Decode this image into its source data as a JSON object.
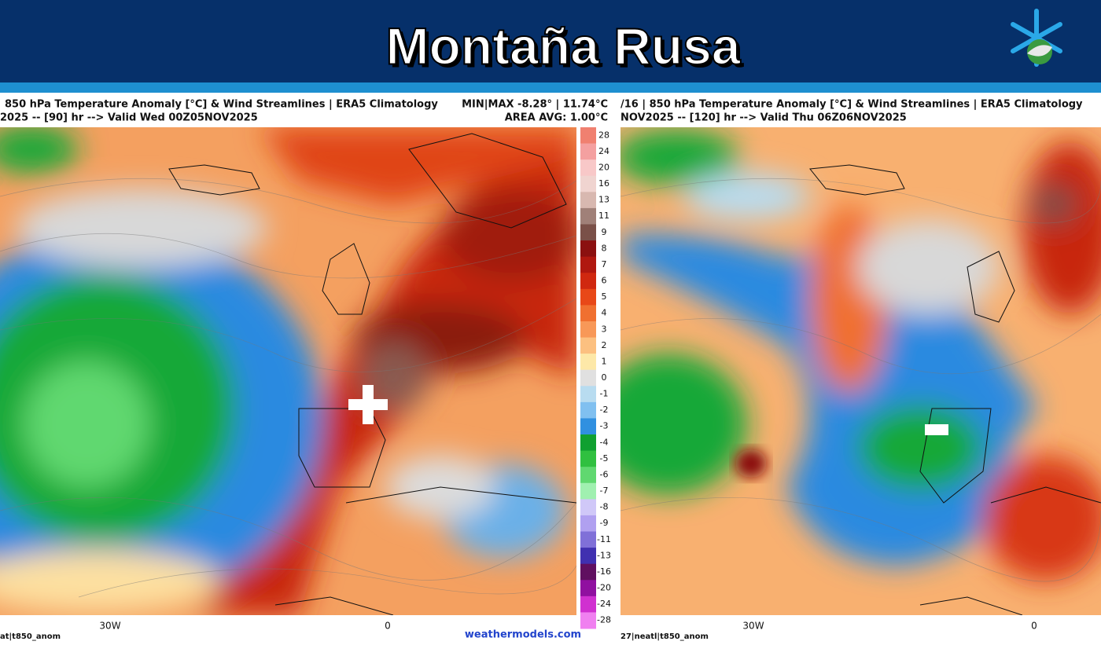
{
  "header": {
    "title": "Montaña Rusa"
  },
  "panels": [
    {
      "title": "850 hPa Temperature Anomaly [°C] & Wind Streamlines | ERA5 Climatology",
      "subtitle": "2025 -- [90] hr --> Valid Wed 00Z05NOV2025",
      "stats_minmax": "MIN|MAX -8.28° | 11.74°C",
      "stats_avg": "AREA AVG: 1.00°C",
      "axis_labels": [
        "30W",
        "0"
      ],
      "footer": "at|t850_anom"
    },
    {
      "title": "/16 | 850 hPa Temperature Anomaly [°C] & Wind Streamlines | ERA5 Climatology",
      "subtitle": "NOV2025 -- [120] hr --> Valid Thu 06Z06NOV2025",
      "axis_labels": [
        "30W",
        "0"
      ],
      "footer": "27|neatl|t850_anom"
    }
  ],
  "colorbar": [
    {
      "value": 28,
      "color": "#f08070"
    },
    {
      "value": 24,
      "color": "#f4a0a0"
    },
    {
      "value": 20,
      "color": "#f8c8c8"
    },
    {
      "value": 16,
      "color": "#f0d4d0"
    },
    {
      "value": 13,
      "color": "#d8b8b0"
    },
    {
      "value": 11,
      "color": "#a08078"
    },
    {
      "value": 9,
      "color": "#7a5048"
    },
    {
      "value": 8,
      "color": "#8b1010"
    },
    {
      "value": 7,
      "color": "#b01810"
    },
    {
      "value": 6,
      "color": "#d02810"
    },
    {
      "value": 5,
      "color": "#e84818"
    },
    {
      "value": 4,
      "color": "#f07030"
    },
    {
      "value": 3,
      "color": "#f89858"
    },
    {
      "value": 2,
      "color": "#fcc080"
    },
    {
      "value": 1,
      "color": "#fde8a8"
    },
    {
      "value": 0,
      "color": "#e0e0e0"
    },
    {
      "value": -1,
      "color": "#b8dcf0"
    },
    {
      "value": -2,
      "color": "#80c0f0"
    },
    {
      "value": -3,
      "color": "#3090e0"
    },
    {
      "value": -4,
      "color": "#10a030"
    },
    {
      "value": -5,
      "color": "#30c040"
    },
    {
      "value": -6,
      "color": "#60d870"
    },
    {
      "value": -7,
      "color": "#a0f0b0"
    },
    {
      "value": -8,
      "color": "#d0c8f8"
    },
    {
      "value": -9,
      "color": "#b0a0f0"
    },
    {
      "value": -11,
      "color": "#8070d8"
    },
    {
      "value": -13,
      "color": "#4030b0"
    },
    {
      "value": -16,
      "color": "#601060"
    },
    {
      "value": -20,
      "color": "#9010a0"
    },
    {
      "value": -24,
      "color": "#d030d0"
    },
    {
      "value": -28,
      "color": "#f080f0"
    }
  ],
  "credit": "weathermodels.com"
}
